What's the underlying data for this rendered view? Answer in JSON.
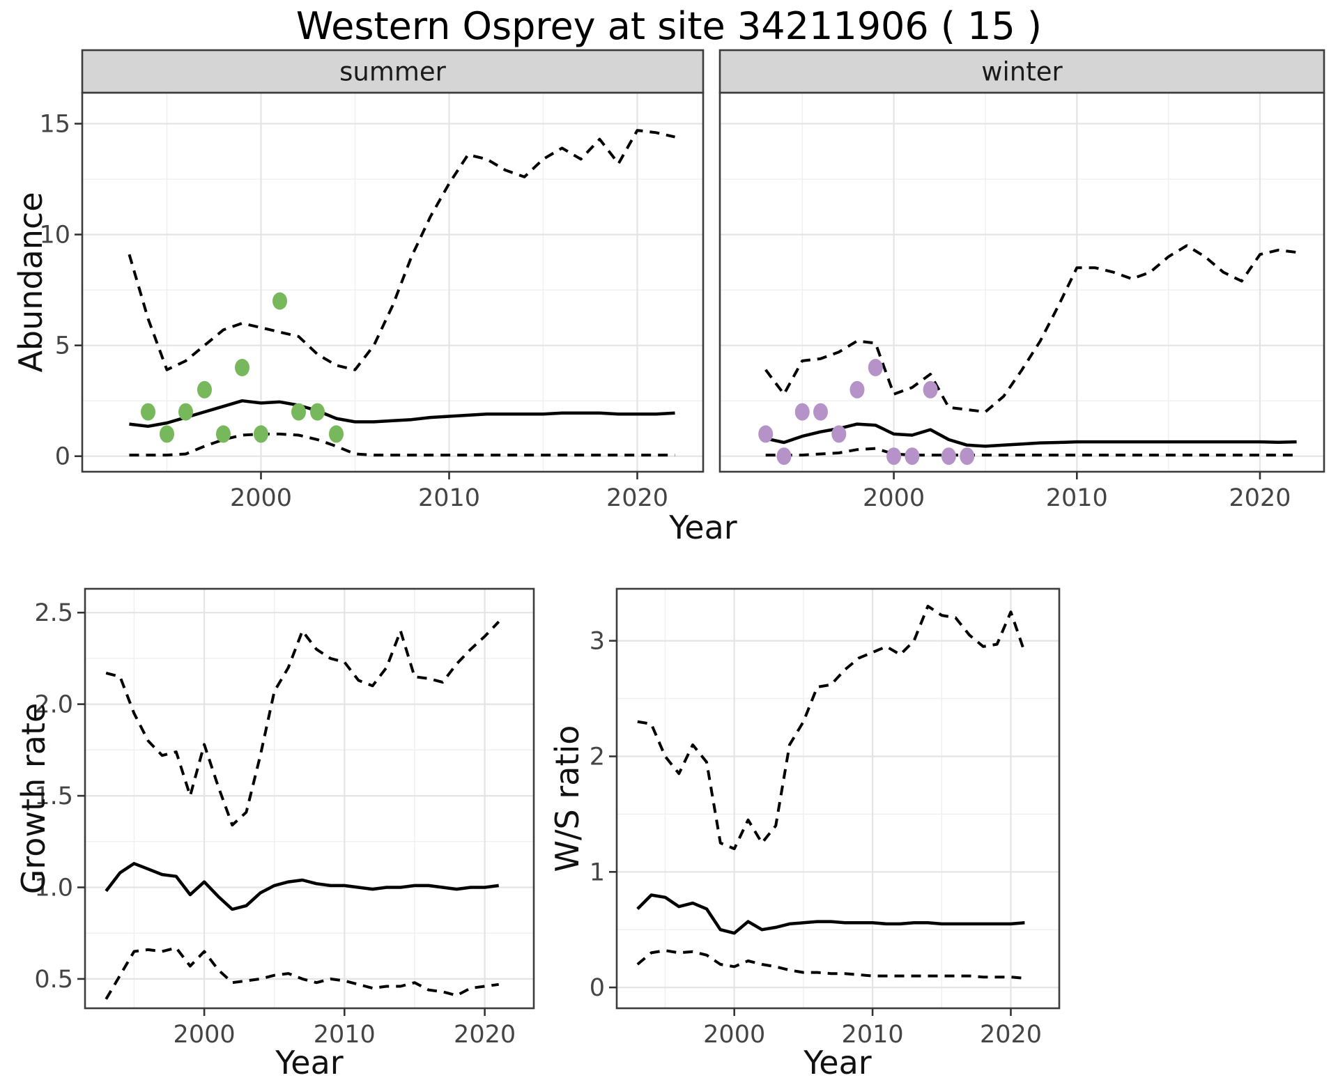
{
  "title": "Western Osprey at site 34211906 ( 15 )",
  "theme": {
    "line": "#000000",
    "summer_point": "#78b85c",
    "winter_point": "#b593c8",
    "grid_major": "#e4e4e4",
    "grid_minor": "#f0f0f0",
    "panel_border": "#3c3c3c",
    "strip_bg": "#d5d5d5",
    "strip_text": "#1a1a1a",
    "tick_label": "#444444",
    "axis_tick": "#333333"
  },
  "chart_data": [
    {
      "id": "abundance-summer",
      "type": "line",
      "facet_label": "summer",
      "ylabel": "Abundance",
      "xlabel": "Year",
      "xlim": [
        1990.5,
        2023.5
      ],
      "ylim": [
        -0.7,
        16.4
      ],
      "xticks": [
        2000,
        2010,
        2020
      ],
      "xtick_labels": [
        "2000",
        "2010",
        "2020"
      ],
      "xticks_minor": [
        1995,
        2005,
        2015
      ],
      "yticks": [
        0,
        5,
        10,
        15
      ],
      "ytick_labels": [
        "0",
        "5",
        "10",
        "15"
      ],
      "yticks_minor": [
        2.5,
        7.5,
        12.5
      ],
      "x": [
        1993,
        1994,
        1995,
        1996,
        1997,
        1998,
        1999,
        2000,
        2001,
        2002,
        2003,
        2004,
        2005,
        2006,
        2007,
        2008,
        2009,
        2010,
        2011,
        2012,
        2013,
        2014,
        2015,
        2016,
        2017,
        2018,
        2019,
        2020,
        2021,
        2022
      ],
      "series": [
        {
          "name": "upper-credible",
          "style": "dashed",
          "values": [
            9.1,
            6.2,
            3.9,
            4.3,
            5.0,
            5.7,
            6.0,
            5.8,
            5.6,
            5.4,
            4.6,
            4.1,
            3.9,
            5.0,
            6.8,
            9.0,
            10.8,
            12.3,
            13.6,
            13.4,
            12.9,
            12.6,
            13.4,
            13.9,
            13.4,
            14.3,
            13.2,
            14.7,
            14.6,
            14.4
          ]
        },
        {
          "name": "median",
          "style": "solid",
          "values": [
            1.45,
            1.35,
            1.5,
            1.75,
            2.0,
            2.25,
            2.5,
            2.4,
            2.45,
            2.3,
            2.05,
            1.7,
            1.55,
            1.55,
            1.6,
            1.65,
            1.75,
            1.8,
            1.85,
            1.9,
            1.9,
            1.9,
            1.9,
            1.95,
            1.95,
            1.95,
            1.9,
            1.9,
            1.9,
            1.95
          ]
        },
        {
          "name": "lower-credible",
          "style": "dashed",
          "values": [
            0.05,
            0.05,
            0.05,
            0.1,
            0.45,
            0.75,
            0.95,
            1.0,
            1.0,
            0.95,
            0.75,
            0.45,
            0.1,
            0.05,
            0.05,
            0.05,
            0.05,
            0.05,
            0.05,
            0.05,
            0.05,
            0.05,
            0.05,
            0.05,
            0.05,
            0.05,
            0.05,
            0.05,
            0.05,
            0.05
          ]
        }
      ],
      "points": {
        "name": "observed-counts",
        "color_key": "summer_point",
        "x": [
          1994,
          1995,
          1996,
          1997,
          1998,
          1999,
          2000,
          2001,
          2002,
          2003,
          2004
        ],
        "y": [
          2,
          1,
          2,
          3,
          1,
          4,
          1,
          7,
          2,
          2,
          1
        ]
      }
    },
    {
      "id": "abundance-winter",
      "type": "line",
      "facet_label": "winter",
      "ylabel": "",
      "xlabel": "Year",
      "xlim": [
        1990.5,
        2023.5
      ],
      "ylim": [
        -0.7,
        16.4
      ],
      "xticks": [
        2000,
        2010,
        2020
      ],
      "xtick_labels": [
        "2000",
        "2010",
        "2020"
      ],
      "xticks_minor": [
        1995,
        2005,
        2015
      ],
      "yticks": [
        0,
        5,
        10,
        15
      ],
      "yticks_minor": [
        2.5,
        7.5,
        12.5
      ],
      "x": [
        1993,
        1994,
        1995,
        1996,
        1997,
        1998,
        1999,
        2000,
        2001,
        2002,
        2003,
        2004,
        2005,
        2006,
        2007,
        2008,
        2009,
        2010,
        2011,
        2012,
        2013,
        2014,
        2015,
        2016,
        2017,
        2018,
        2019,
        2020,
        2021,
        2022
      ],
      "series": [
        {
          "name": "upper-credible",
          "style": "dashed",
          "values": [
            3.9,
            2.8,
            4.3,
            4.4,
            4.7,
            5.2,
            5.1,
            2.8,
            3.1,
            3.7,
            2.2,
            2.1,
            2.0,
            2.7,
            3.9,
            5.2,
            6.8,
            8.5,
            8.5,
            8.3,
            8.0,
            8.3,
            9.0,
            9.5,
            9.0,
            8.3,
            7.9,
            9.1,
            9.3,
            9.2
          ]
        },
        {
          "name": "median",
          "style": "solid",
          "values": [
            0.8,
            0.62,
            0.9,
            1.1,
            1.25,
            1.45,
            1.4,
            1.0,
            0.95,
            1.2,
            0.75,
            0.5,
            0.45,
            0.5,
            0.55,
            0.6,
            0.62,
            0.65,
            0.65,
            0.65,
            0.65,
            0.65,
            0.65,
            0.65,
            0.65,
            0.65,
            0.65,
            0.65,
            0.63,
            0.65
          ]
        },
        {
          "name": "lower-credible",
          "style": "dashed",
          "values": [
            0.05,
            0.05,
            0.05,
            0.1,
            0.15,
            0.3,
            0.35,
            0.1,
            0.05,
            0.05,
            0.05,
            0.05,
            0.05,
            0.05,
            0.05,
            0.05,
            0.05,
            0.05,
            0.05,
            0.05,
            0.05,
            0.05,
            0.05,
            0.05,
            0.05,
            0.05,
            0.05,
            0.05,
            0.05,
            0.05
          ]
        }
      ],
      "points": {
        "name": "observed-counts",
        "color_key": "winter_point",
        "x": [
          1993,
          1994,
          1995,
          1996,
          1997,
          1998,
          1999,
          2000,
          2001,
          2002,
          2003,
          2004
        ],
        "y": [
          1,
          0,
          2,
          2,
          1,
          3,
          4,
          0,
          0,
          3,
          0,
          0
        ]
      }
    },
    {
      "id": "growth-rate",
      "type": "line",
      "facet_label": "",
      "ylabel": "Growth rate",
      "xlabel": "Year",
      "xlim": [
        1991.5,
        2023.5
      ],
      "ylim": [
        0.34,
        2.63
      ],
      "xticks": [
        2000,
        2010,
        2020
      ],
      "xtick_labels": [
        "2000",
        "2010",
        "2020"
      ],
      "xticks_minor": [
        1995,
        2005,
        2015
      ],
      "yticks": [
        0.5,
        1.0,
        1.5,
        2.0,
        2.5
      ],
      "ytick_labels": [
        "0.5",
        "1.0",
        "1.5",
        "2.0",
        "2.5"
      ],
      "yticks_minor": [
        0.75,
        1.25,
        1.75,
        2.25
      ],
      "x": [
        1993,
        1994,
        1995,
        1996,
        1997,
        1998,
        1999,
        2000,
        2001,
        2002,
        2003,
        2004,
        2005,
        2006,
        2007,
        2008,
        2009,
        2010,
        2011,
        2012,
        2013,
        2014,
        2015,
        2016,
        2017,
        2018,
        2019,
        2020,
        2021
      ],
      "series": [
        {
          "name": "upper-credible",
          "style": "dashed",
          "values": [
            2.17,
            2.15,
            1.95,
            1.8,
            1.72,
            1.74,
            1.5,
            1.78,
            1.55,
            1.34,
            1.41,
            1.72,
            2.07,
            2.2,
            2.4,
            2.3,
            2.25,
            2.23,
            2.13,
            2.1,
            2.2,
            2.4,
            2.15,
            2.14,
            2.12,
            2.22,
            2.3,
            2.37,
            2.45
          ]
        },
        {
          "name": "median",
          "style": "solid",
          "values": [
            0.98,
            1.08,
            1.13,
            1.1,
            1.07,
            1.06,
            0.96,
            1.03,
            0.95,
            0.88,
            0.9,
            0.97,
            1.01,
            1.03,
            1.04,
            1.02,
            1.01,
            1.01,
            1.0,
            0.99,
            1.0,
            1.0,
            1.01,
            1.01,
            1.0,
            0.99,
            1.0,
            1.0,
            1.01
          ]
        },
        {
          "name": "lower-credible",
          "style": "dashed",
          "values": [
            0.39,
            0.52,
            0.65,
            0.66,
            0.65,
            0.67,
            0.57,
            0.65,
            0.55,
            0.48,
            0.49,
            0.5,
            0.52,
            0.53,
            0.5,
            0.48,
            0.5,
            0.49,
            0.47,
            0.45,
            0.46,
            0.46,
            0.48,
            0.44,
            0.43,
            0.41,
            0.45,
            0.46,
            0.47
          ]
        }
      ]
    },
    {
      "id": "ws-ratio",
      "type": "line",
      "facet_label": "",
      "ylabel": "W/S ratio",
      "xlabel": "Year",
      "xlim": [
        1991.5,
        2023.5
      ],
      "ylim": [
        -0.18,
        3.45
      ],
      "xticks": [
        2000,
        2010,
        2020
      ],
      "xtick_labels": [
        "2000",
        "2010",
        "2020"
      ],
      "xticks_minor": [
        1995,
        2005,
        2015
      ],
      "yticks": [
        0,
        1,
        2,
        3
      ],
      "ytick_labels": [
        "0",
        "1",
        "2",
        "3"
      ],
      "yticks_minor": [
        0.5,
        1.5,
        2.5,
        3.5
      ],
      "x": [
        1993,
        1994,
        1995,
        1996,
        1997,
        1998,
        1999,
        2000,
        2001,
        2002,
        2003,
        2004,
        2005,
        2006,
        2007,
        2008,
        2009,
        2010,
        2011,
        2012,
        2013,
        2014,
        2015,
        2016,
        2017,
        2018,
        2019,
        2020,
        2021
      ],
      "series": [
        {
          "name": "upper-credible",
          "style": "dashed",
          "values": [
            2.3,
            2.28,
            2.0,
            1.85,
            2.1,
            1.95,
            1.25,
            1.2,
            1.45,
            1.25,
            1.4,
            2.1,
            2.3,
            2.6,
            2.62,
            2.75,
            2.85,
            2.9,
            2.95,
            2.88,
            3.0,
            3.3,
            3.22,
            3.2,
            3.05,
            2.95,
            2.97,
            3.25,
            2.9
          ]
        },
        {
          "name": "median",
          "style": "solid",
          "values": [
            0.68,
            0.8,
            0.78,
            0.7,
            0.73,
            0.68,
            0.5,
            0.47,
            0.57,
            0.5,
            0.52,
            0.55,
            0.56,
            0.57,
            0.57,
            0.56,
            0.56,
            0.56,
            0.55,
            0.55,
            0.56,
            0.56,
            0.55,
            0.55,
            0.55,
            0.55,
            0.55,
            0.55,
            0.56
          ]
        },
        {
          "name": "lower-credible",
          "style": "dashed",
          "values": [
            0.2,
            0.3,
            0.32,
            0.3,
            0.31,
            0.28,
            0.2,
            0.18,
            0.23,
            0.2,
            0.18,
            0.15,
            0.13,
            0.13,
            0.12,
            0.12,
            0.11,
            0.1,
            0.1,
            0.1,
            0.1,
            0.1,
            0.1,
            0.1,
            0.1,
            0.09,
            0.09,
            0.09,
            0.08
          ]
        }
      ]
    }
  ]
}
